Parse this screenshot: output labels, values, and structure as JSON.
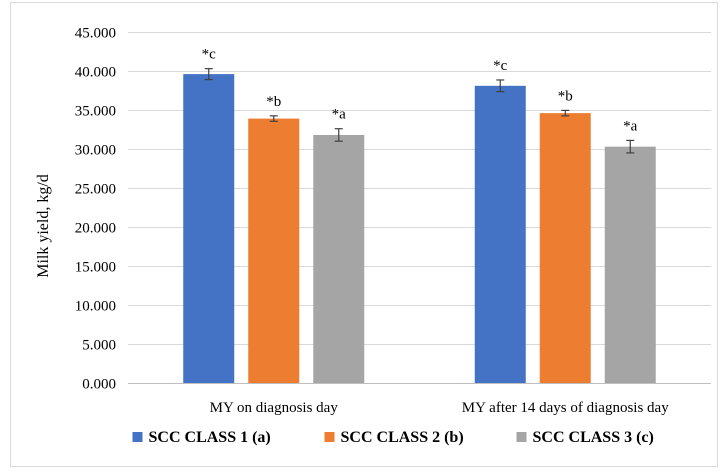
{
  "chart_data": {
    "type": "bar",
    "title": "",
    "xlabel": "",
    "ylabel": "Milk yield, kg/d",
    "ylim": [
      0,
      45
    ],
    "ytick_step": 5,
    "ytick_format_decimals": 3,
    "grid": "horizontal",
    "legend_position": "bottom",
    "categories": [
      "MY on diagnosis day",
      "MY after 14 days of diagnosis day"
    ],
    "series": [
      {
        "name": "SCC CLASS 1 (a)",
        "color": "#4472C4",
        "values": [
          39.6,
          38.1
        ],
        "errors": [
          0.7,
          0.75
        ],
        "labels": [
          "*c",
          "*c"
        ]
      },
      {
        "name": "SCC CLASS 2 (b)",
        "color": "#ED7D31",
        "values": [
          33.9,
          34.6
        ],
        "errors": [
          0.35,
          0.35
        ],
        "labels": [
          "*b",
          "*b"
        ]
      },
      {
        "name": "SCC CLASS 3 (c)",
        "color": "#A5A5A5",
        "values": [
          31.8,
          30.3
        ],
        "errors": [
          0.8,
          0.8
        ],
        "labels": [
          "*a",
          "*a"
        ]
      }
    ]
  }
}
